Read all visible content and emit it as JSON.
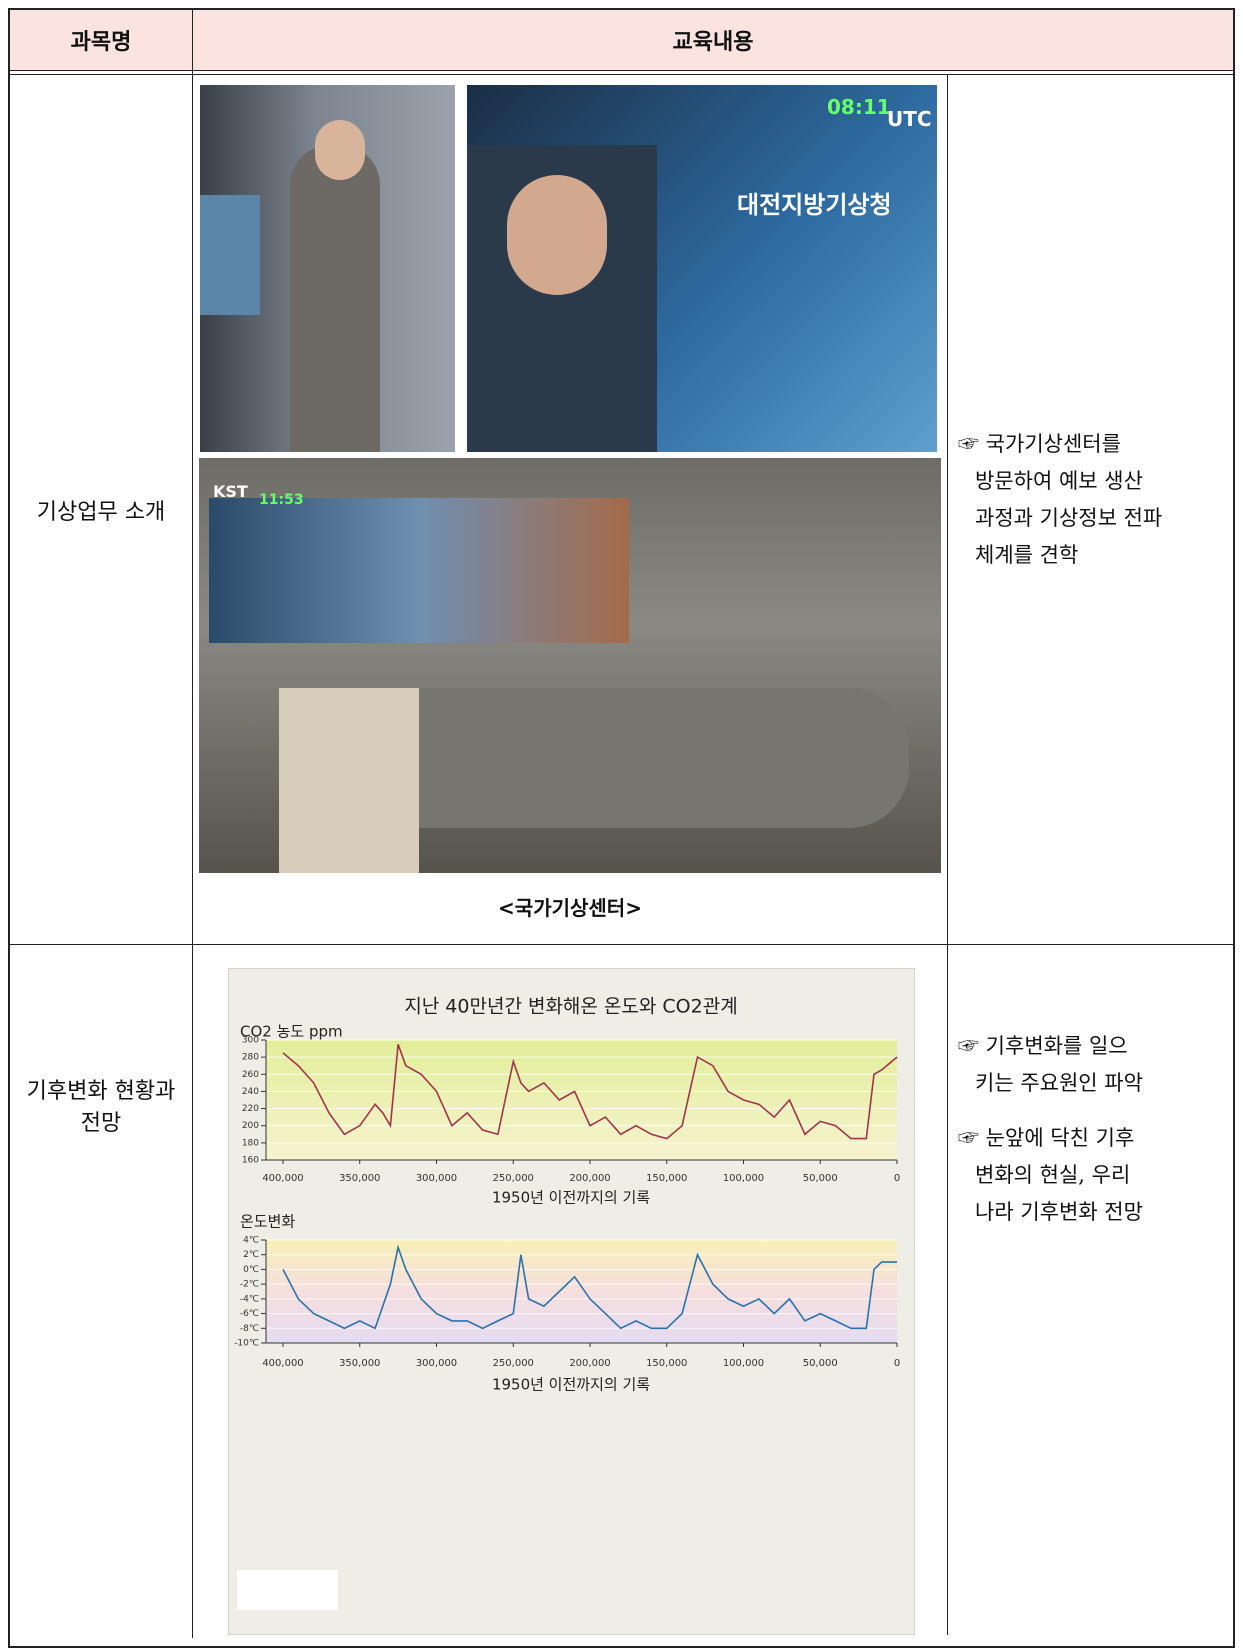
{
  "table": {
    "header": [
      "과목명",
      "교육내용"
    ],
    "rows": [
      {
        "subject": "기상업무 소개",
        "photo_texts": [
          "08:11",
          "UTC",
          "대전지방기상청",
          "KST",
          "11:53"
        ],
        "caption": "<국가기상센터>",
        "description": [
          "☞ 국가기상센터를",
          "방문하여 예보 생산",
          "과정과 기상정보 전파",
          "체계를 견학"
        ]
      },
      {
        "subject": [
          "기후변화 현황과",
          "전망"
        ],
        "description": [
          "☞ 기후변화를 일으",
          "키는 주요원인 파악",
          "☞ 눈앞에 닥친 기후",
          "변화의 현실, 우리",
          "나라 기후변화 전망"
        ]
      }
    ]
  },
  "chart": {
    "type": "line",
    "title": "지난 40만년간 변화해온 온도와 CO2관계",
    "xlabel": "1950년 이전까지의 기록",
    "x": [
      400000,
      390000,
      380000,
      370000,
      360000,
      350000,
      340000,
      335000,
      330000,
      325000,
      320000,
      310000,
      300000,
      290000,
      280000,
      270000,
      260000,
      250000,
      245000,
      240000,
      230000,
      220000,
      210000,
      200000,
      190000,
      180000,
      170000,
      160000,
      150000,
      140000,
      130000,
      120000,
      110000,
      100000,
      90000,
      80000,
      70000,
      60000,
      50000,
      40000,
      30000,
      20000,
      15000,
      10000,
      0
    ],
    "xlim": [
      400000,
      0
    ],
    "xticks": [
      {
        "value": 400000,
        "label": "400,000"
      },
      {
        "value": 350000,
        "label": "350,000"
      },
      {
        "value": 300000,
        "label": "300,000"
      },
      {
        "value": 250000,
        "label": "250,000"
      },
      {
        "value": 200000,
        "label": "200,000"
      },
      {
        "value": 150000,
        "label": "150,000"
      },
      {
        "value": 100000,
        "label": "100,000"
      },
      {
        "value": 50000,
        "label": "50,000"
      },
      0
    ],
    "panels": [
      {
        "name": "CO2 농도 ppm",
        "color": "#a3344d",
        "ylim": [
          160,
          300
        ],
        "yticks": [
          160,
          180,
          200,
          220,
          240,
          260,
          280,
          300
        ],
        "values": [
          285,
          270,
          250,
          215,
          190,
          200,
          225,
          215,
          200,
          295,
          270,
          260,
          240,
          200,
          215,
          195,
          190,
          275,
          250,
          240,
          250,
          230,
          240,
          200,
          210,
          190,
          200,
          190,
          185,
          200,
          280,
          270,
          240,
          230,
          225,
          210,
          230,
          190,
          205,
          200,
          185,
          185,
          260,
          265,
          280
        ]
      },
      {
        "name": "온도변화",
        "color": "#2b72ad",
        "ylim": [
          -10,
          4
        ],
        "yticks": [
          {
            "value": 4,
            "label": "4℃"
          },
          {
            "value": 2,
            "label": "2℃"
          },
          {
            "value": 0,
            "label": "0℃"
          },
          {
            "value": -2,
            "label": "-2℃"
          },
          {
            "value": -4,
            "label": "-4℃"
          },
          {
            "value": -6,
            "label": "-6℃"
          },
          {
            "value": -8,
            "label": "-8℃"
          },
          {
            "value": -10,
            "label": "-10℃"
          }
        ],
        "values": [
          0,
          -4,
          -6,
          -7,
          -8,
          -7,
          -8,
          -5,
          -2,
          3,
          0,
          -4,
          -6,
          -7,
          -7,
          -8,
          -7,
          -6,
          2,
          -4,
          -5,
          -3,
          -1,
          -4,
          -6,
          -8,
          -7,
          -8,
          -8,
          -6,
          2,
          -2,
          -4,
          -5,
          -4,
          -6,
          -4,
          -7,
          -6,
          -7,
          -8,
          -8,
          0,
          1,
          1
        ]
      }
    ]
  }
}
